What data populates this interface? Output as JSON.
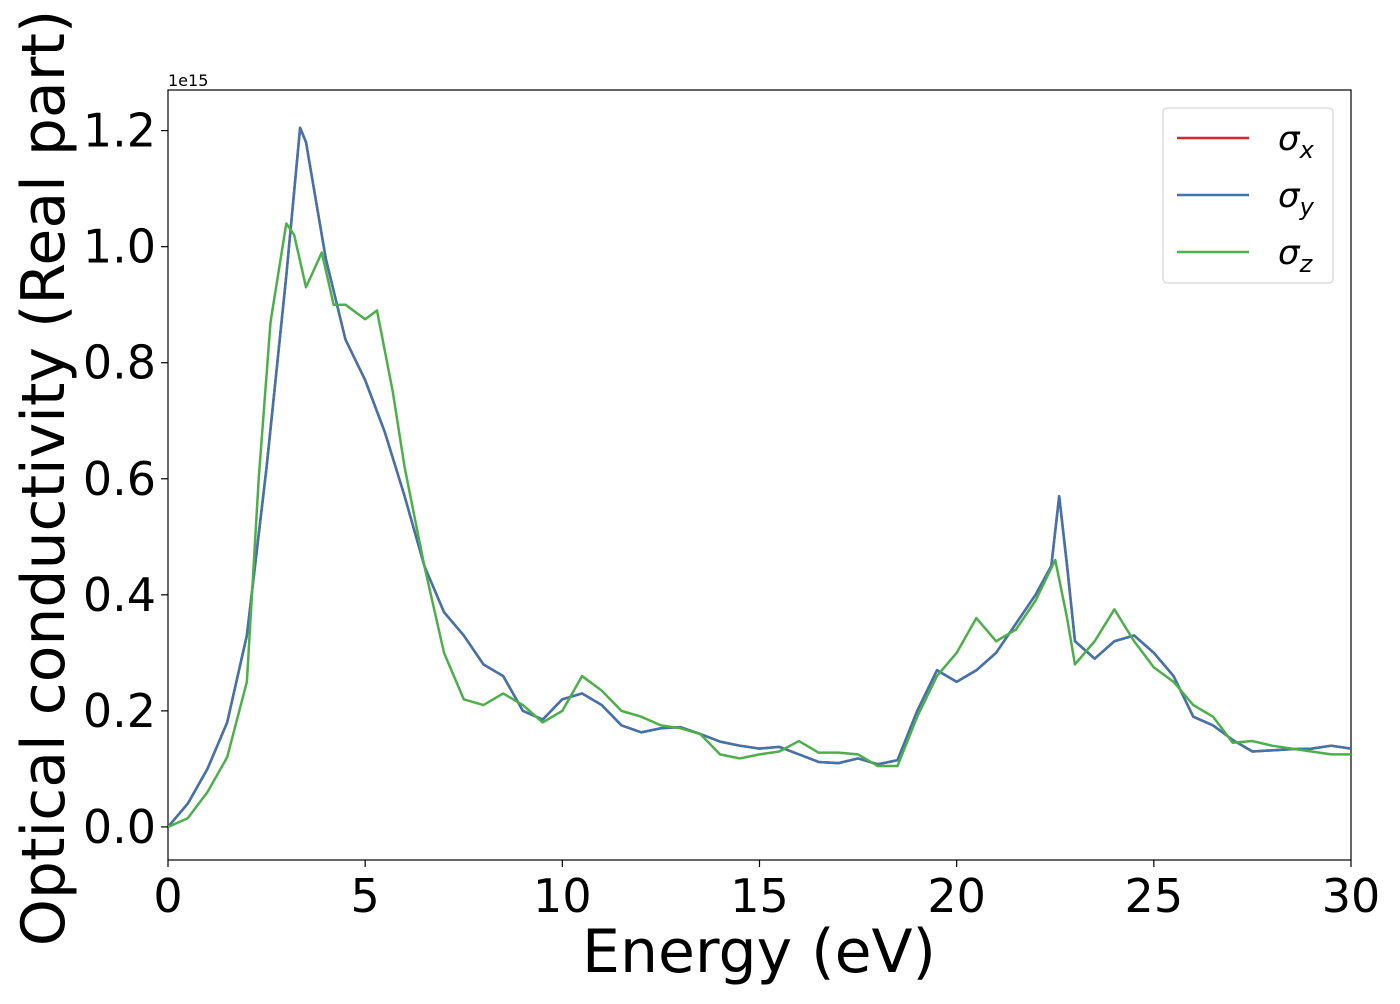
{
  "chart_data": {
    "type": "line",
    "xlabel": "Energy (eV)",
    "ylabel": "Optical conductivity (Real part)",
    "y_offset_label": "1e15",
    "xlim": [
      0,
      30
    ],
    "xticks": [
      0,
      5,
      10,
      15,
      20,
      25,
      30
    ],
    "ylim": [
      -0.057,
      1.27
    ],
    "yticks": [
      {
        "value": 0,
        "label": "0.0"
      },
      0.2,
      0.4,
      0.6,
      0.8,
      {
        "value": 1,
        "label": "1.0"
      },
      1.2
    ],
    "grid": false,
    "legend": "upper right",
    "series": [
      {
        "name": "σx",
        "color": "#d62728",
        "x": [
          0,
          0.5,
          1,
          1.5,
          2,
          2.5,
          3,
          3.35,
          3.5,
          4,
          4.5,
          5,
          5.5,
          6,
          6.5,
          7,
          7.5,
          8,
          8.5,
          9,
          9.5,
          10,
          10.5,
          11,
          11.5,
          12,
          12.5,
          13,
          13.5,
          14,
          14.5,
          15,
          15.5,
          16,
          16.5,
          17,
          17.5,
          18,
          18.5,
          19,
          19.5,
          20,
          20.5,
          21,
          21.5,
          22,
          22.4,
          22.6,
          22.8,
          23,
          23.5,
          24,
          24.5,
          25,
          25.5,
          26,
          26.5,
          27,
          27.5,
          28,
          28.5,
          29,
          29.5,
          30
        ],
        "values": [
          0,
          0.04,
          0.1,
          0.18,
          0.33,
          0.62,
          0.95,
          1.205,
          1.18,
          0.98,
          0.84,
          0.77,
          0.68,
          0.57,
          0.45,
          0.37,
          0.33,
          0.28,
          0.26,
          0.2,
          0.185,
          0.22,
          0.23,
          0.21,
          0.175,
          0.163,
          0.17,
          0.172,
          0.16,
          0.147,
          0.14,
          0.135,
          0.138,
          0.125,
          0.112,
          0.11,
          0.118,
          0.108,
          0.115,
          0.2,
          0.27,
          0.25,
          0.27,
          0.3,
          0.35,
          0.4,
          0.45,
          0.57,
          0.45,
          0.32,
          0.29,
          0.32,
          0.33,
          0.3,
          0.26,
          0.19,
          0.175,
          0.15,
          0.13,
          0.132,
          0.134,
          0.135,
          0.14,
          0.135
        ]
      },
      {
        "name": "σy",
        "color": "#3f74ad",
        "x": [
          0,
          0.5,
          1,
          1.5,
          2,
          2.5,
          3,
          3.35,
          3.5,
          4,
          4.5,
          5,
          5.5,
          6,
          6.5,
          7,
          7.5,
          8,
          8.5,
          9,
          9.5,
          10,
          10.5,
          11,
          11.5,
          12,
          12.5,
          13,
          13.5,
          14,
          14.5,
          15,
          15.5,
          16,
          16.5,
          17,
          17.5,
          18,
          18.5,
          19,
          19.5,
          20,
          20.5,
          21,
          21.5,
          22,
          22.4,
          22.6,
          22.8,
          23,
          23.5,
          24,
          24.5,
          25,
          25.5,
          26,
          26.5,
          27,
          27.5,
          28,
          28.5,
          29,
          29.5,
          30
        ],
        "values": [
          0,
          0.04,
          0.1,
          0.18,
          0.33,
          0.62,
          0.95,
          1.205,
          1.18,
          0.98,
          0.84,
          0.77,
          0.68,
          0.57,
          0.45,
          0.37,
          0.33,
          0.28,
          0.26,
          0.2,
          0.185,
          0.22,
          0.23,
          0.21,
          0.175,
          0.163,
          0.17,
          0.172,
          0.16,
          0.147,
          0.14,
          0.135,
          0.138,
          0.125,
          0.112,
          0.11,
          0.118,
          0.108,
          0.115,
          0.2,
          0.27,
          0.25,
          0.27,
          0.3,
          0.35,
          0.4,
          0.45,
          0.57,
          0.45,
          0.32,
          0.29,
          0.32,
          0.33,
          0.3,
          0.26,
          0.19,
          0.175,
          0.15,
          0.13,
          0.132,
          0.134,
          0.135,
          0.14,
          0.135
        ]
      },
      {
        "name": "σz",
        "color": "#4daf4a",
        "x": [
          0,
          0.5,
          1,
          1.5,
          2,
          2.3,
          2.6,
          3,
          3.2,
          3.5,
          3.9,
          4.2,
          4.5,
          5,
          5.3,
          5.7,
          6,
          6.5,
          7,
          7.5,
          8,
          8.5,
          9,
          9.5,
          10,
          10.5,
          11,
          11.5,
          12,
          12.5,
          13,
          13.5,
          14,
          14.5,
          15,
          15.5,
          16,
          16.5,
          17,
          17.5,
          18,
          18.5,
          19,
          19.5,
          20,
          20.5,
          21,
          21.5,
          22,
          22.5,
          22.8,
          23,
          23.5,
          24,
          24.5,
          25,
          25.5,
          26,
          26.5,
          27,
          27.5,
          28,
          28.5,
          29,
          29.5,
          30
        ],
        "values": [
          0,
          0.015,
          0.06,
          0.12,
          0.25,
          0.6,
          0.87,
          1.04,
          1.02,
          0.93,
          0.99,
          0.9,
          0.9,
          0.875,
          0.89,
          0.75,
          0.62,
          0.45,
          0.3,
          0.22,
          0.21,
          0.23,
          0.21,
          0.18,
          0.2,
          0.26,
          0.235,
          0.2,
          0.19,
          0.175,
          0.17,
          0.16,
          0.125,
          0.118,
          0.125,
          0.13,
          0.148,
          0.128,
          0.128,
          0.125,
          0.105,
          0.105,
          0.19,
          0.26,
          0.3,
          0.36,
          0.32,
          0.34,
          0.39,
          0.46,
          0.36,
          0.28,
          0.32,
          0.375,
          0.32,
          0.275,
          0.25,
          0.21,
          0.19,
          0.145,
          0.148,
          0.14,
          0.135,
          0.13,
          0.125,
          0.125
        ]
      }
    ]
  }
}
